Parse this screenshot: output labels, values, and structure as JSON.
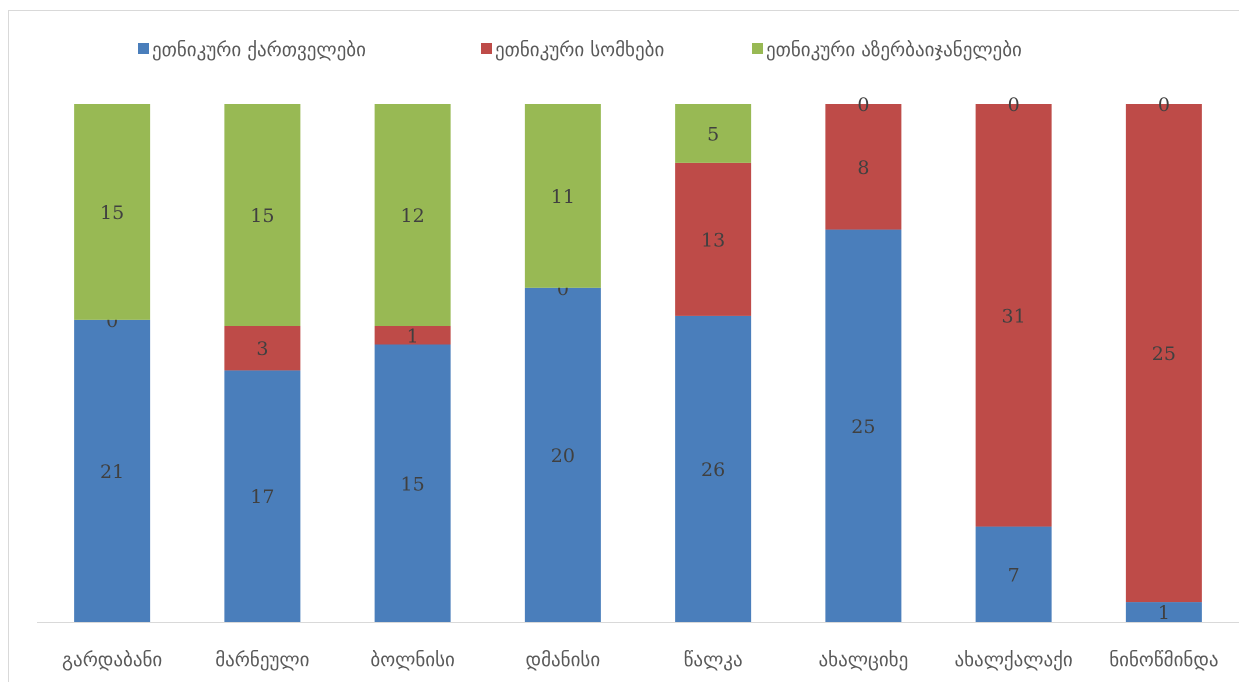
{
  "chart_data": {
    "type": "bar",
    "stacked": true,
    "normalized": true,
    "categories": [
      "გარდაბანი",
      "მარნეული",
      "ბოლნისი",
      "დმანისი",
      "წალკა",
      "ახალციხე",
      "ახალქალაქი",
      "ნინოწმინდა"
    ],
    "series": [
      {
        "name": "ეთნიკური ქართველები",
        "color": "#4a7ebb",
        "values": [
          21,
          17,
          15,
          20,
          26,
          25,
          7,
          1
        ]
      },
      {
        "name": "ეთნიკური სომხები",
        "color": "#be4b48",
        "values": [
          0,
          3,
          1,
          0,
          13,
          8,
          31,
          25
        ]
      },
      {
        "name": "ეთნიკური აზერბაიჯანელები",
        "color": "#98b954",
        "values": [
          15,
          15,
          12,
          11,
          5,
          0,
          0,
          0
        ]
      }
    ],
    "legend_position": "top",
    "grid": false,
    "title": "",
    "xlabel": "",
    "ylabel": ""
  }
}
